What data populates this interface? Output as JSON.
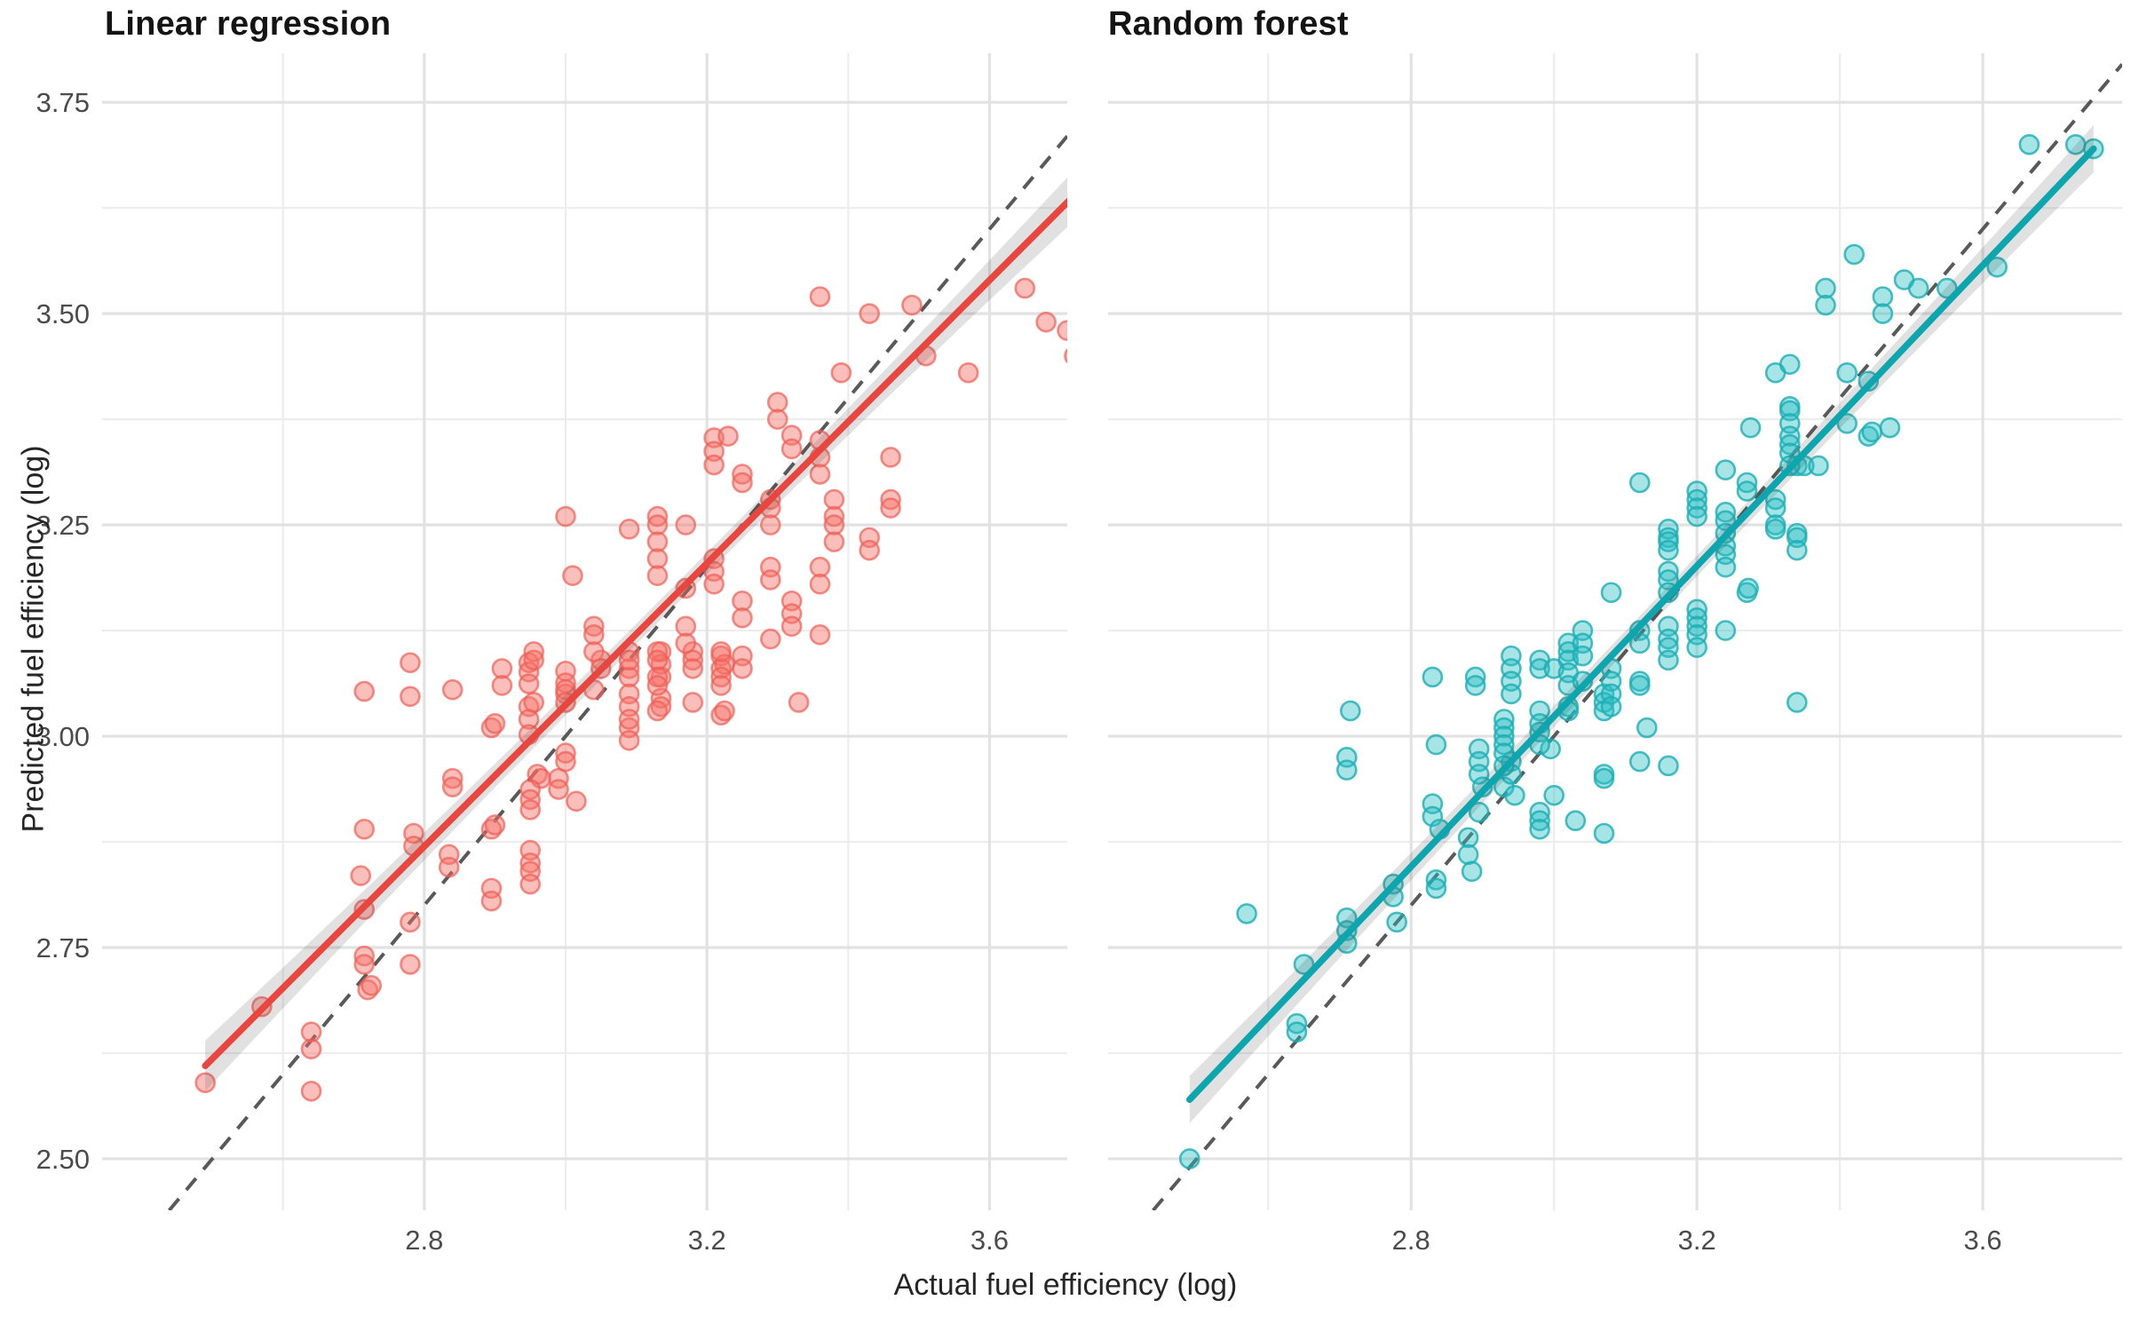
{
  "figure": {
    "facets": [
      {
        "title": "Linear regression"
      },
      {
        "title": "Random forest"
      }
    ],
    "x_axis": {
      "title": "Actual fuel efficiency (log)",
      "major_ticks": [
        2.8,
        3.2,
        3.6
      ],
      "minor_ticks": [
        2.6,
        3.0,
        3.4,
        3.8
      ],
      "tick_labels": [
        "2.8",
        "3.2",
        "3.6"
      ]
    },
    "y_axis": {
      "title": "Predicted fuel efficiency (log)",
      "major_ticks": [
        2.5,
        2.75,
        3.0,
        3.25,
        3.5,
        3.75
      ],
      "minor_ticks": [
        2.625,
        2.875,
        3.125,
        3.375,
        3.625
      ],
      "tick_labels": [
        "2.50",
        "2.75",
        "3.00",
        "3.25",
        "3.50",
        "3.75"
      ]
    },
    "colors": {
      "point_red_fill": "rgba(246,112,104,0.45)",
      "point_red_stroke": "rgba(240,92,84,0.70)",
      "line_red": "#e8463f",
      "point_teal_fill": "rgba(44,191,196,0.42)",
      "point_teal_stroke": "rgba(26,174,180,0.80)",
      "line_teal": "#0ea6ae",
      "identity_dash": "#595959",
      "band_fill": "rgba(70,70,70,0.16)",
      "grid_major": "#e2e2e2",
      "grid_minor": "#ededed",
      "tick_label": "#4b4b4b"
    }
  },
  "chart_data": [
    {
      "type": "scatter",
      "facet": "Linear regression",
      "xlabel": "Actual fuel efficiency (log)",
      "ylabel": "Predicted fuel efficiency (log)",
      "xlim": [
        2.344,
        3.71
      ],
      "ylim": [
        2.439,
        3.808
      ],
      "grid": true,
      "identity_line": true,
      "smooth": {
        "x1": 2.49,
        "y1": 2.61,
        "x2": 3.72,
        "y2": 3.64,
        "band_tip": 0.03,
        "band_mid": 0.012
      },
      "points": [
        [
          2.49,
          2.59
        ],
        [
          2.57,
          2.68
        ],
        [
          2.64,
          2.65
        ],
        [
          2.64,
          2.63
        ],
        [
          2.64,
          2.58
        ],
        [
          2.715,
          2.74
        ],
        [
          2.715,
          2.73
        ],
        [
          2.72,
          2.7
        ],
        [
          2.725,
          2.705
        ],
        [
          2.78,
          2.73
        ],
        [
          2.715,
          2.795
        ],
        [
          2.78,
          2.78
        ],
        [
          2.71,
          2.835
        ],
        [
          2.895,
          2.82
        ],
        [
          2.895,
          2.805
        ],
        [
          2.835,
          2.86
        ],
        [
          2.835,
          2.845
        ],
        [
          2.785,
          2.885
        ],
        [
          2.785,
          2.87
        ],
        [
          2.715,
          2.89
        ],
        [
          2.895,
          2.89
        ],
        [
          2.9,
          2.895
        ],
        [
          2.84,
          2.95
        ],
        [
          2.84,
          2.94
        ],
        [
          2.95,
          2.865
        ],
        [
          2.95,
          2.85
        ],
        [
          2.95,
          2.84
        ],
        [
          2.95,
          2.825
        ],
        [
          2.96,
          2.955
        ],
        [
          2.965,
          2.95
        ],
        [
          2.95,
          2.937
        ],
        [
          2.95,
          2.925
        ],
        [
          2.95,
          2.913
        ],
        [
          2.99,
          2.95
        ],
        [
          2.99,
          2.937
        ],
        [
          3.015,
          2.923
        ],
        [
          2.895,
          3.01
        ],
        [
          2.9,
          3.015
        ],
        [
          3.0,
          2.98
        ],
        [
          3.0,
          2.97
        ],
        [
          3.09,
          3.01
        ],
        [
          3.09,
          2.995
        ],
        [
          2.715,
          3.053
        ],
        [
          2.78,
          3.087
        ],
        [
          2.78,
          3.047
        ],
        [
          2.84,
          3.055
        ],
        [
          2.948,
          3.087
        ],
        [
          2.948,
          3.076
        ],
        [
          2.948,
          3.062
        ],
        [
          2.948,
          3.035
        ],
        [
          2.948,
          3.02
        ],
        [
          2.948,
          3.002
        ],
        [
          3.0,
          3.077
        ],
        [
          3.0,
          3.063
        ],
        [
          3.0,
          3.05
        ],
        [
          3.05,
          3.09
        ],
        [
          3.05,
          3.08
        ],
        [
          3.09,
          3.08
        ],
        [
          3.09,
          3.07
        ],
        [
          3.135,
          3.1
        ],
        [
          3.135,
          3.085
        ],
        [
          3.135,
          3.07
        ],
        [
          3.18,
          3.1
        ],
        [
          3.18,
          3.09
        ],
        [
          3.18,
          3.08
        ],
        [
          3.22,
          3.095
        ],
        [
          3.22,
          3.08
        ],
        [
          3.225,
          3.085
        ],
        [
          3.09,
          3.05
        ],
        [
          3.09,
          3.035
        ],
        [
          3.135,
          3.045
        ],
        [
          3.135,
          3.035
        ],
        [
          3.18,
          3.04
        ],
        [
          3.33,
          3.04
        ],
        [
          3.09,
          3.02
        ],
        [
          2.955,
          3.1
        ],
        [
          2.955,
          3.09
        ],
        [
          2.91,
          3.08
        ],
        [
          2.91,
          3.06
        ],
        [
          2.955,
          3.04
        ],
        [
          3.0,
          3.055
        ],
        [
          3.0,
          3.04
        ],
        [
          3.04,
          3.055
        ],
        [
          3.13,
          3.03
        ],
        [
          3.22,
          3.025
        ],
        [
          3.225,
          3.03
        ],
        [
          3.01,
          3.19
        ],
        [
          3.0,
          3.26
        ],
        [
          3.04,
          3.13
        ],
        [
          3.04,
          3.12
        ],
        [
          3.04,
          3.1
        ],
        [
          3.09,
          3.1
        ],
        [
          3.09,
          3.09
        ],
        [
          3.13,
          3.1
        ],
        [
          3.13,
          3.09
        ],
        [
          3.13,
          3.07
        ],
        [
          3.13,
          3.06
        ],
        [
          3.17,
          3.13
        ],
        [
          3.17,
          3.11
        ],
        [
          3.21,
          3.21
        ],
        [
          3.21,
          3.195
        ],
        [
          3.21,
          3.18
        ],
        [
          3.22,
          3.1
        ],
        [
          3.22,
          3.07
        ],
        [
          3.22,
          3.06
        ],
        [
          3.25,
          3.095
        ],
        [
          3.25,
          3.08
        ],
        [
          3.29,
          3.115
        ],
        [
          3.36,
          3.12
        ],
        [
          3.09,
          3.245
        ],
        [
          3.13,
          3.26
        ],
        [
          3.13,
          3.25
        ],
        [
          3.13,
          3.23
        ],
        [
          3.17,
          3.25
        ],
        [
          3.13,
          3.21
        ],
        [
          3.13,
          3.19
        ],
        [
          3.17,
          3.175
        ],
        [
          3.25,
          3.16
        ],
        [
          3.25,
          3.14
        ],
        [
          3.29,
          3.2
        ],
        [
          3.29,
          3.185
        ],
        [
          3.32,
          3.16
        ],
        [
          3.32,
          3.145
        ],
        [
          3.32,
          3.13
        ],
        [
          3.36,
          3.2
        ],
        [
          3.36,
          3.18
        ],
        [
          3.21,
          3.353
        ],
        [
          3.21,
          3.337
        ],
        [
          3.21,
          3.321
        ],
        [
          3.23,
          3.355
        ],
        [
          3.25,
          3.31
        ],
        [
          3.25,
          3.3
        ],
        [
          3.29,
          3.28
        ],
        [
          3.29,
          3.27
        ],
        [
          3.29,
          3.25
        ],
        [
          3.3,
          3.395
        ],
        [
          3.3,
          3.375
        ],
        [
          3.32,
          3.356
        ],
        [
          3.32,
          3.34
        ],
        [
          3.36,
          3.35
        ],
        [
          3.36,
          3.33
        ],
        [
          3.36,
          3.31
        ],
        [
          3.38,
          3.28
        ],
        [
          3.38,
          3.26
        ],
        [
          3.38,
          3.25
        ],
        [
          3.38,
          3.23
        ],
        [
          3.46,
          3.33
        ],
        [
          3.46,
          3.28
        ],
        [
          3.46,
          3.27
        ],
        [
          3.43,
          3.235
        ],
        [
          3.43,
          3.22
        ],
        [
          3.36,
          3.52
        ],
        [
          3.43,
          3.5
        ],
        [
          3.49,
          3.51
        ],
        [
          3.65,
          3.53
        ],
        [
          3.68,
          3.49
        ],
        [
          3.71,
          3.48
        ],
        [
          3.51,
          3.45
        ],
        [
          3.57,
          3.43
        ],
        [
          3.39,
          3.43
        ],
        [
          3.72,
          3.45
        ]
      ]
    },
    {
      "type": "scatter",
      "facet": "Random forest",
      "xlabel": "Actual fuel efficiency (log)",
      "ylabel": "Predicted fuel efficiency (log)",
      "xlim": [
        2.376,
        3.795
      ],
      "ylim": [
        2.439,
        3.808
      ],
      "grid": true,
      "identity_line": true,
      "smooth": {
        "x1": 2.49,
        "y1": 2.57,
        "x2": 3.755,
        "y2": 3.695,
        "band_tip": 0.028,
        "band_mid": 0.012
      },
      "points": [
        [
          2.49,
          2.5
        ],
        [
          2.64,
          2.66
        ],
        [
          2.64,
          2.65
        ],
        [
          2.65,
          2.73
        ],
        [
          2.57,
          2.79
        ],
        [
          2.71,
          2.785
        ],
        [
          2.71,
          2.77
        ],
        [
          2.71,
          2.755
        ],
        [
          2.775,
          2.825
        ],
        [
          2.775,
          2.81
        ],
        [
          2.78,
          2.78
        ],
        [
          2.83,
          2.92
        ],
        [
          2.83,
          2.905
        ],
        [
          2.84,
          2.89
        ],
        [
          2.835,
          2.83
        ],
        [
          2.835,
          2.82
        ],
        [
          2.88,
          2.88
        ],
        [
          2.88,
          2.86
        ],
        [
          2.885,
          2.84
        ],
        [
          2.895,
          2.985
        ],
        [
          2.895,
          2.97
        ],
        [
          2.895,
          2.955
        ],
        [
          2.9,
          2.94
        ],
        [
          2.895,
          2.91
        ],
        [
          2.93,
          2.94
        ],
        [
          2.94,
          2.97
        ],
        [
          2.94,
          2.955
        ],
        [
          2.945,
          2.93
        ],
        [
          2.835,
          2.99
        ],
        [
          2.71,
          2.975
        ],
        [
          2.71,
          2.96
        ],
        [
          2.715,
          3.03
        ],
        [
          2.98,
          2.91
        ],
        [
          2.98,
          2.9
        ],
        [
          2.98,
          2.89
        ],
        [
          3.03,
          2.9
        ],
        [
          3.07,
          2.955
        ],
        [
          3.07,
          2.95
        ],
        [
          3.07,
          2.885
        ],
        [
          3.0,
          2.93
        ],
        [
          2.995,
          2.985
        ],
        [
          2.83,
          3.07
        ],
        [
          2.89,
          3.07
        ],
        [
          2.89,
          3.06
        ],
        [
          2.93,
          3.02
        ],
        [
          2.93,
          3.01
        ],
        [
          2.93,
          3.0
        ],
        [
          2.93,
          2.99
        ],
        [
          2.93,
          2.98
        ],
        [
          2.93,
          2.965
        ],
        [
          2.94,
          3.095
        ],
        [
          2.94,
          3.08
        ],
        [
          2.94,
          3.065
        ],
        [
          2.94,
          3.05
        ],
        [
          2.98,
          3.09
        ],
        [
          2.98,
          3.08
        ],
        [
          2.98,
          3.03
        ],
        [
          2.98,
          3.015
        ],
        [
          2.98,
          3.005
        ],
        [
          2.98,
          2.99
        ],
        [
          3.0,
          3.08
        ],
        [
          3.02,
          3.11
        ],
        [
          3.02,
          3.1
        ],
        [
          3.02,
          3.09
        ],
        [
          3.02,
          3.075
        ],
        [
          3.02,
          3.06
        ],
        [
          3.02,
          3.035
        ],
        [
          3.02,
          3.03
        ],
        [
          3.04,
          3.125
        ],
        [
          3.04,
          3.11
        ],
        [
          3.04,
          3.095
        ],
        [
          3.04,
          3.065
        ],
        [
          3.07,
          3.05
        ],
        [
          3.07,
          3.04
        ],
        [
          3.07,
          3.03
        ],
        [
          3.08,
          3.08
        ],
        [
          3.08,
          3.065
        ],
        [
          3.08,
          3.05
        ],
        [
          3.08,
          3.035
        ],
        [
          3.12,
          3.125
        ],
        [
          3.12,
          3.11
        ],
        [
          3.12,
          3.065
        ],
        [
          3.12,
          3.06
        ],
        [
          3.12,
          2.97
        ],
        [
          3.13,
          3.01
        ],
        [
          3.16,
          2.965
        ],
        [
          3.08,
          3.17
        ],
        [
          3.12,
          3.3
        ],
        [
          3.16,
          3.195
        ],
        [
          3.16,
          3.185
        ],
        [
          3.16,
          3.17
        ],
        [
          3.16,
          3.13
        ],
        [
          3.16,
          3.115
        ],
        [
          3.16,
          3.105
        ],
        [
          3.16,
          3.09
        ],
        [
          3.16,
          3.245
        ],
        [
          3.16,
          3.235
        ],
        [
          3.16,
          3.23
        ],
        [
          3.16,
          3.22
        ],
        [
          3.2,
          3.15
        ],
        [
          3.2,
          3.14
        ],
        [
          3.2,
          3.13
        ],
        [
          3.2,
          3.12
        ],
        [
          3.2,
          3.105
        ],
        [
          3.2,
          3.29
        ],
        [
          3.2,
          3.28
        ],
        [
          3.2,
          3.27
        ],
        [
          3.2,
          3.26
        ],
        [
          3.24,
          3.265
        ],
        [
          3.24,
          3.255
        ],
        [
          3.24,
          3.24
        ],
        [
          3.24,
          3.225
        ],
        [
          3.24,
          3.215
        ],
        [
          3.24,
          3.2
        ],
        [
          3.24,
          3.125
        ],
        [
          3.24,
          3.315
        ],
        [
          3.27,
          3.3
        ],
        [
          3.27,
          3.29
        ],
        [
          3.27,
          3.17
        ],
        [
          3.272,
          3.175
        ],
        [
          3.31,
          3.28
        ],
        [
          3.31,
          3.27
        ],
        [
          3.31,
          3.25
        ],
        [
          3.31,
          3.245
        ],
        [
          3.34,
          3.24
        ],
        [
          3.34,
          3.235
        ],
        [
          3.34,
          3.22
        ],
        [
          3.34,
          3.04
        ],
        [
          3.34,
          3.32
        ],
        [
          3.35,
          3.32
        ],
        [
          3.37,
          3.32
        ],
        [
          3.44,
          3.355
        ],
        [
          3.445,
          3.36
        ],
        [
          3.275,
          3.365
        ],
        [
          3.31,
          3.43
        ],
        [
          3.33,
          3.44
        ],
        [
          3.33,
          3.39
        ],
        [
          3.33,
          3.385
        ],
        [
          3.33,
          3.37
        ],
        [
          3.33,
          3.355
        ],
        [
          3.33,
          3.345
        ],
        [
          3.33,
          3.335
        ],
        [
          3.33,
          3.32
        ],
        [
          3.41,
          3.43
        ],
        [
          3.44,
          3.42
        ],
        [
          3.47,
          3.365
        ],
        [
          3.41,
          3.37
        ],
        [
          3.38,
          3.53
        ],
        [
          3.38,
          3.51
        ],
        [
          3.42,
          3.57
        ],
        [
          3.46,
          3.52
        ],
        [
          3.46,
          3.5
        ],
        [
          3.49,
          3.54
        ],
        [
          3.51,
          3.53
        ],
        [
          3.55,
          3.53
        ],
        [
          3.62,
          3.555
        ],
        [
          3.665,
          3.7
        ],
        [
          3.73,
          3.7
        ],
        [
          3.755,
          3.695
        ]
      ]
    }
  ]
}
